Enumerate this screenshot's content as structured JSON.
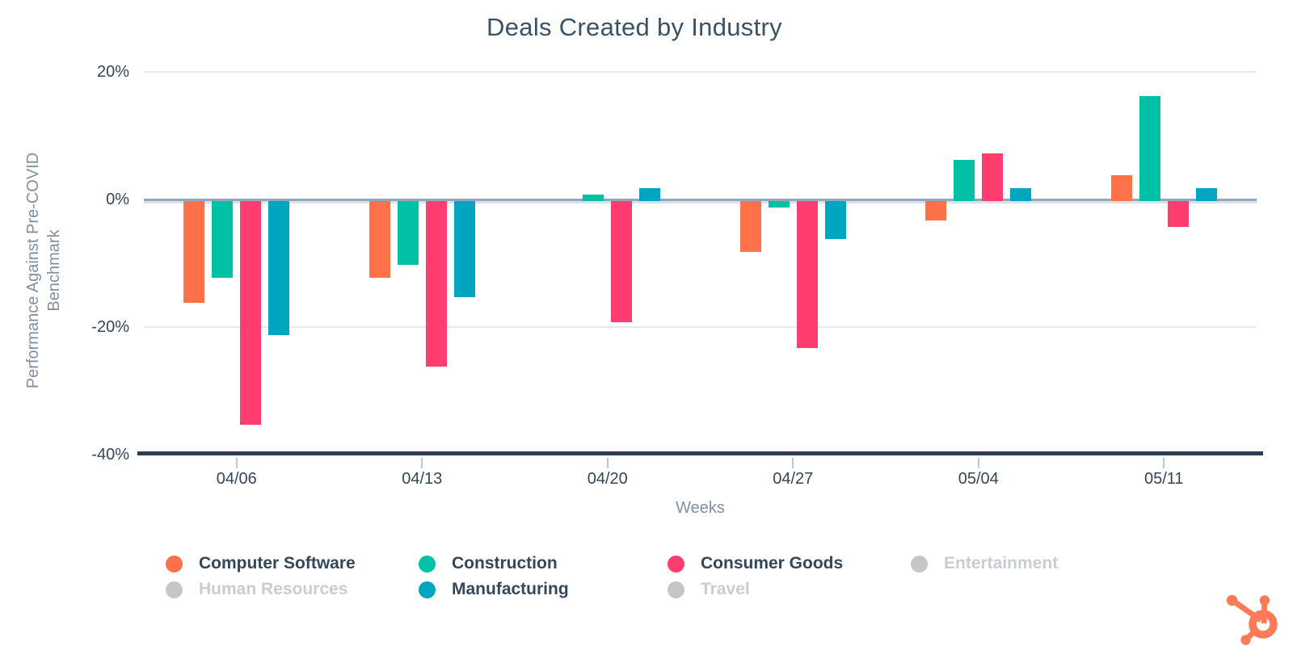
{
  "title": "Deals Created by Industry",
  "colors": {
    "title": "#3b5266",
    "label_dark": "#33475b",
    "label_gray": "#81909f",
    "grid": "#e7e9ec",
    "zero_line": "#92a8c1",
    "zero_line_light": "#dae1ea",
    "axis_dark": "#2d3e50",
    "tick": "#b9c8da",
    "legend_disabled_text": "#c8cdd3",
    "legend_disabled_dot": "#c6c6c6",
    "logo": "#ff7a59",
    "background": "#ffffff",
    "series_orange": "#ff7148",
    "series_teal": "#00c1a6",
    "series_pink": "#ff3d6e",
    "series_blue": "#00a5c0"
  },
  "chart_data": {
    "type": "bar",
    "title": "Deals Created by Industry",
    "xlabel": "Weeks",
    "ylabel": "Performance Against Pre-COVID Benchmark",
    "ylabel_lines": [
      "Performance Against Pre-COVID",
      "Benchmark"
    ],
    "categories": [
      "04/06",
      "04/13",
      "04/20",
      "04/27",
      "05/04",
      "05/11"
    ],
    "ylim": [
      -40,
      20
    ],
    "grid": true,
    "legend_position": "bottom",
    "yticks": [
      {
        "value": 20,
        "label": "20%"
      },
      {
        "value": 0,
        "label": "0%"
      },
      {
        "value": -20,
        "label": "-20%"
      },
      {
        "value": -40,
        "label": "-40%"
      }
    ],
    "series": [
      {
        "name": "Computer Software",
        "color": "#ff7148",
        "values": [
          -16,
          -12,
          0,
          -8,
          -3,
          4
        ]
      },
      {
        "name": "Construction",
        "color": "#00c1a6",
        "values": [
          -12,
          -10,
          1,
          -1,
          6.5,
          16.5
        ]
      },
      {
        "name": "Consumer Goods",
        "color": "#ff3d6e",
        "values": [
          -35,
          -26,
          -19,
          -23,
          7.5,
          -4
        ]
      },
      {
        "name": "Manufacturing",
        "color": "#00a5c0",
        "values": [
          -21,
          -15,
          2,
          -6,
          2,
          2
        ]
      }
    ],
    "legend": [
      {
        "label": "Computer Software",
        "color": "#ff7148",
        "disabled": false
      },
      {
        "label": "Construction",
        "color": "#00c1a6",
        "disabled": false
      },
      {
        "label": "Consumer Goods",
        "color": "#ff3d6e",
        "disabled": false
      },
      {
        "label": "Entertainment",
        "color": "#c6c6c6",
        "disabled": true
      },
      {
        "label": "Human Resources",
        "color": "#c6c6c6",
        "disabled": true
      },
      {
        "label": "Manufacturing",
        "color": "#00a5c0",
        "disabled": false
      },
      {
        "label": "Travel",
        "color": "#c6c6c6",
        "disabled": true
      }
    ]
  },
  "branding": {
    "logo_name": "hubspot-sprocket-logo"
  }
}
